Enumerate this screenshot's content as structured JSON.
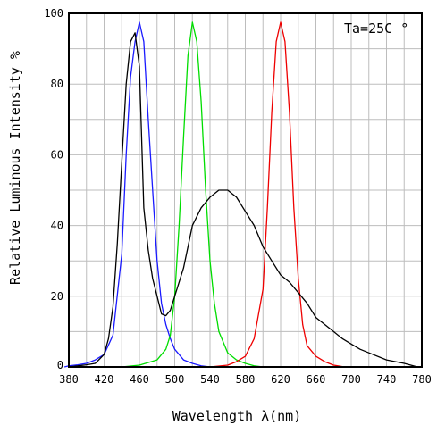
{
  "chart_data": {
    "type": "line",
    "title": "",
    "xlabel": "Wavelength λ(nm)",
    "ylabel": "Relative Luminous Intensity %",
    "annotation": "Ta=25C °",
    "xlim": [
      380,
      780
    ],
    "ylim": [
      0,
      100
    ],
    "x_ticks": [
      380,
      420,
      460,
      500,
      540,
      580,
      620,
      660,
      700,
      740,
      780
    ],
    "y_ticks": [
      0,
      20,
      40,
      60,
      80,
      100
    ],
    "grid": true,
    "legend": "none",
    "series": [
      {
        "color": "#1a1aff",
        "points": [
          [
            375,
            0
          ],
          [
            380,
            0.3
          ],
          [
            390,
            0.6
          ],
          [
            400,
            1
          ],
          [
            410,
            2
          ],
          [
            420,
            3.5
          ],
          [
            430,
            9
          ],
          [
            440,
            32
          ],
          [
            445,
            60
          ],
          [
            450,
            82
          ],
          [
            455,
            92
          ],
          [
            460,
            97.5
          ],
          [
            465,
            92
          ],
          [
            470,
            70
          ],
          [
            475,
            50
          ],
          [
            480,
            30
          ],
          [
            485,
            18
          ],
          [
            490,
            12
          ],
          [
            495,
            8
          ],
          [
            500,
            5
          ],
          [
            510,
            2
          ],
          [
            520,
            1
          ],
          [
            530,
            0.3
          ],
          [
            540,
            0
          ]
        ]
      },
      {
        "color": "#00dd00",
        "points": [
          [
            440,
            0
          ],
          [
            460,
            0.5
          ],
          [
            480,
            2
          ],
          [
            490,
            5
          ],
          [
            495,
            9
          ],
          [
            500,
            20
          ],
          [
            505,
            40
          ],
          [
            510,
            65
          ],
          [
            515,
            88
          ],
          [
            520,
            97.5
          ],
          [
            525,
            92
          ],
          [
            530,
            75
          ],
          [
            535,
            50
          ],
          [
            540,
            30
          ],
          [
            545,
            18
          ],
          [
            550,
            10
          ],
          [
            560,
            4
          ],
          [
            570,
            2
          ],
          [
            580,
            1
          ],
          [
            590,
            0.3
          ],
          [
            600,
            0
          ]
        ]
      },
      {
        "color": "#ee0000",
        "points": [
          [
            540,
            0
          ],
          [
            560,
            0.5
          ],
          [
            570,
            1.5
          ],
          [
            580,
            3
          ],
          [
            590,
            8
          ],
          [
            600,
            22
          ],
          [
            605,
            45
          ],
          [
            610,
            72
          ],
          [
            615,
            92
          ],
          [
            620,
            97.5
          ],
          [
            625,
            92
          ],
          [
            630,
            72
          ],
          [
            635,
            45
          ],
          [
            640,
            25
          ],
          [
            645,
            12
          ],
          [
            650,
            6
          ],
          [
            660,
            3
          ],
          [
            670,
            1.5
          ],
          [
            680,
            0.5
          ],
          [
            690,
            0.1
          ],
          [
            700,
            0
          ]
        ]
      },
      {
        "color": "#000000",
        "points": [
          [
            380,
            0
          ],
          [
            390,
            0.3
          ],
          [
            400,
            0.6
          ],
          [
            410,
            1
          ],
          [
            420,
            3.5
          ],
          [
            425,
            8
          ],
          [
            430,
            17
          ],
          [
            435,
            35
          ],
          [
            440,
            58
          ],
          [
            445,
            80
          ],
          [
            450,
            92
          ],
          [
            455,
            94.5
          ],
          [
            460,
            85
          ],
          [
            465,
            45
          ],
          [
            470,
            33
          ],
          [
            475,
            25
          ],
          [
            480,
            20
          ],
          [
            485,
            15
          ],
          [
            490,
            14.5
          ],
          [
            495,
            16
          ],
          [
            500,
            20
          ],
          [
            510,
            28
          ],
          [
            520,
            40
          ],
          [
            530,
            45
          ],
          [
            540,
            48
          ],
          [
            550,
            50
          ],
          [
            560,
            50
          ],
          [
            570,
            48
          ],
          [
            580,
            44
          ],
          [
            590,
            40
          ],
          [
            600,
            34
          ],
          [
            610,
            30
          ],
          [
            620,
            26
          ],
          [
            630,
            24
          ],
          [
            640,
            21
          ],
          [
            650,
            18
          ],
          [
            660,
            14
          ],
          [
            670,
            12
          ],
          [
            680,
            10
          ],
          [
            690,
            8
          ],
          [
            700,
            6.5
          ],
          [
            710,
            5
          ],
          [
            720,
            4
          ],
          [
            740,
            2
          ],
          [
            760,
            1
          ],
          [
            775,
            0
          ]
        ]
      }
    ]
  }
}
